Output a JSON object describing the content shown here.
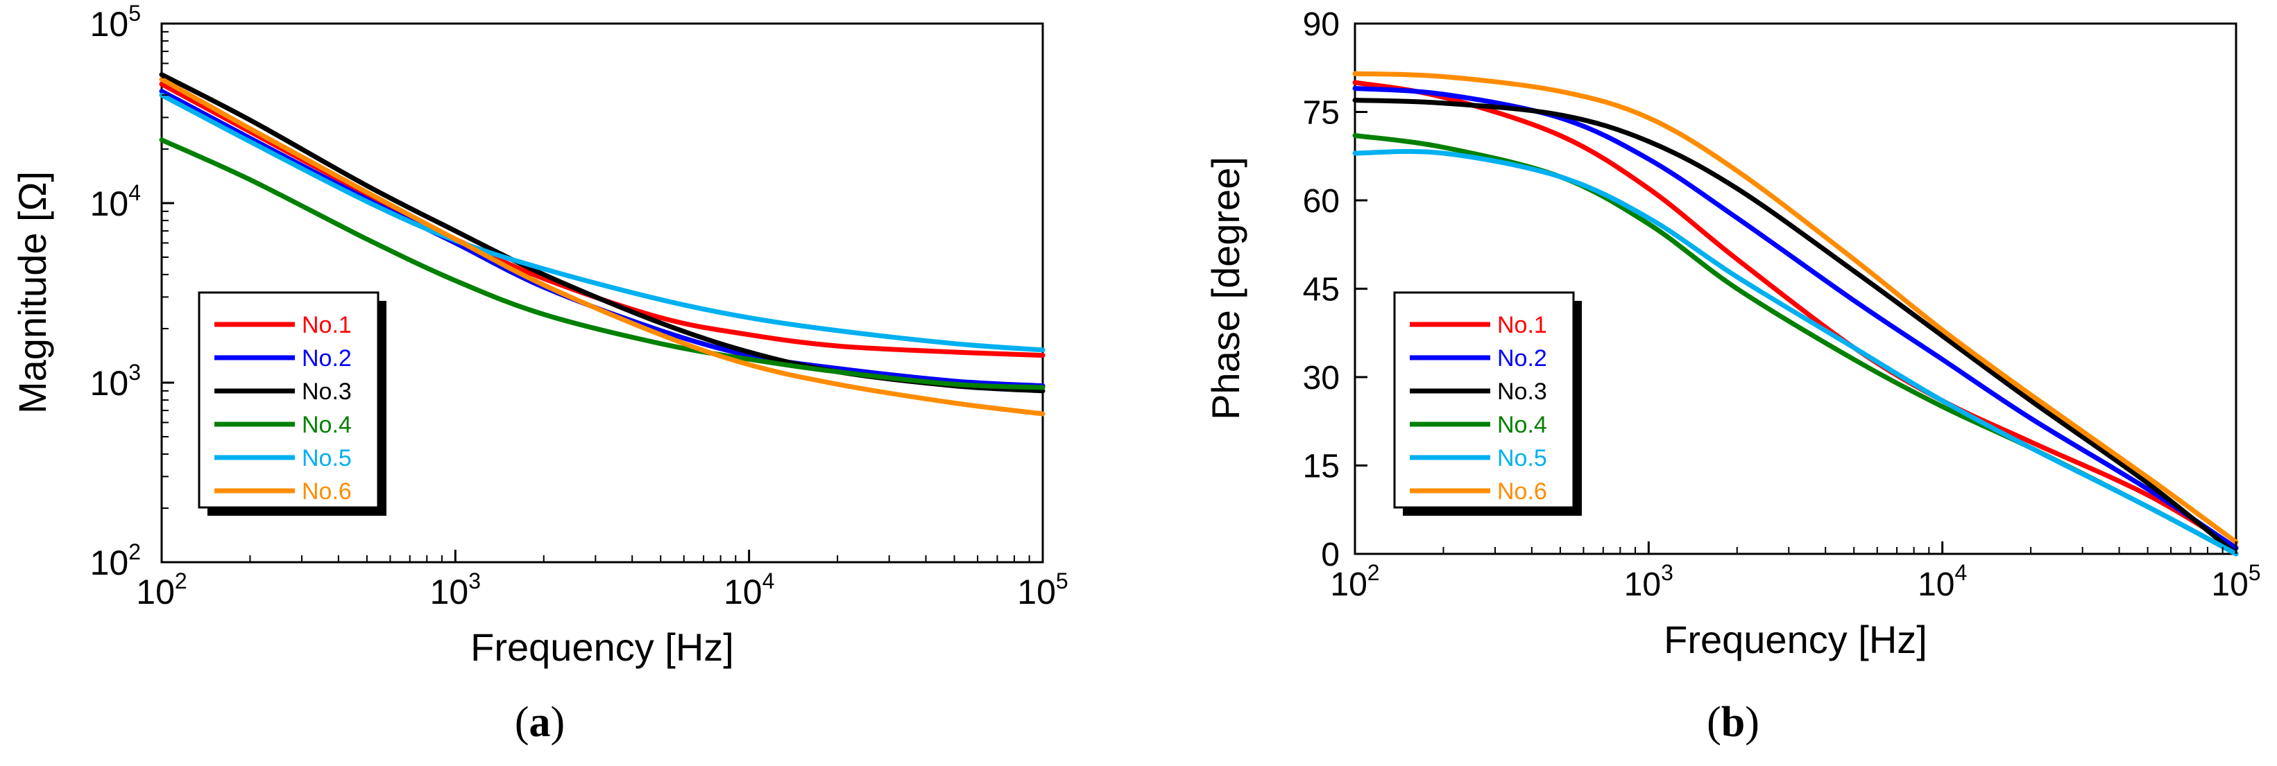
{
  "chart_data": [
    {
      "id": "a",
      "type": "line",
      "panel_label": "a",
      "xlabel": "Frequency [Hz]",
      "ylabel": "Magnitude [Ω]",
      "xscale": "log",
      "yscale": "log",
      "xlim": [
        100,
        100000
      ],
      "ylim": [
        100,
        100000
      ],
      "x_ticks": [
        100,
        1000,
        10000,
        100000
      ],
      "x_tick_labels": [
        {
          "base": "10",
          "exp": "2"
        },
        {
          "base": "10",
          "exp": "3"
        },
        {
          "base": "10",
          "exp": "4"
        },
        {
          "base": "10",
          "exp": "5"
        }
      ],
      "y_ticks": [
        100,
        1000,
        10000,
        100000
      ],
      "y_tick_labels": [
        {
          "base": "10",
          "exp": "2"
        },
        {
          "base": "10",
          "exp": "3"
        },
        {
          "base": "10",
          "exp": "4"
        },
        {
          "base": "10",
          "exp": "5"
        }
      ],
      "grid": false,
      "legend_position": "bottom-left",
      "x": [
        100,
        200,
        500,
        1000,
        2000,
        5000,
        10000,
        20000,
        50000,
        100000
      ],
      "series": [
        {
          "name": "No.1",
          "color": "#ff0000",
          "values": [
            46000,
            25000,
            11200,
            6300,
            3800,
            2300,
            1850,
            1600,
            1480,
            1420
          ]
        },
        {
          "name": "No.2",
          "color": "#0000ff",
          "values": [
            42000,
            23000,
            10500,
            6000,
            3400,
            1950,
            1420,
            1200,
            1020,
            960
          ]
        },
        {
          "name": "No.3",
          "color": "#000000",
          "values": [
            52000,
            29000,
            12500,
            7000,
            4000,
            2150,
            1480,
            1150,
            960,
            900
          ]
        },
        {
          "name": "No.4",
          "color": "#008000",
          "values": [
            22500,
            13500,
            6300,
            3700,
            2400,
            1650,
            1350,
            1150,
            980,
            940
          ]
        },
        {
          "name": "No.5",
          "color": "#00b0f0",
          "values": [
            40000,
            22000,
            10200,
            6200,
            4300,
            2900,
            2300,
            1950,
            1650,
            1520
          ]
        },
        {
          "name": "No.6",
          "color": "#ff8c00",
          "values": [
            49000,
            26000,
            11500,
            6300,
            3500,
            1850,
            1260,
            980,
            770,
            670
          ]
        }
      ]
    },
    {
      "id": "b",
      "type": "line",
      "panel_label": "b",
      "xlabel": "Frequency [Hz]",
      "ylabel": "Phase [degree]",
      "xscale": "log",
      "yscale": "linear",
      "xlim": [
        100,
        100000
      ],
      "ylim": [
        0,
        90
      ],
      "x_ticks": [
        100,
        1000,
        10000,
        100000
      ],
      "x_tick_labels": [
        {
          "base": "10",
          "exp": "2"
        },
        {
          "base": "10",
          "exp": "3"
        },
        {
          "base": "10",
          "exp": "4"
        },
        {
          "base": "10",
          "exp": "5"
        }
      ],
      "y_ticks": [
        0,
        15,
        30,
        45,
        60,
        75,
        90
      ],
      "y_tick_labels": [
        "0",
        "15",
        "30",
        "45",
        "60",
        "75",
        "90"
      ],
      "grid": false,
      "legend_position": "bottom-left",
      "x": [
        100,
        200,
        500,
        1000,
        2000,
        5000,
        10000,
        20000,
        50000,
        100000
      ],
      "series": [
        {
          "name": "No.1",
          "color": "#ff0000",
          "values": [
            80,
            77.5,
            71,
            62,
            50,
            35,
            26,
            19,
            10,
            1
          ]
        },
        {
          "name": "No.2",
          "color": "#0000ff",
          "values": [
            79,
            78,
            74,
            67,
            57,
            43,
            33,
            23,
            11,
            1
          ]
        },
        {
          "name": "No.3",
          "color": "#000000",
          "values": [
            77,
            76.5,
            74.5,
            70,
            62,
            48,
            37,
            26,
            12,
            0
          ]
        },
        {
          "name": "No.4",
          "color": "#008000",
          "values": [
            71,
            69,
            64,
            56,
            45,
            33,
            25,
            18,
            8,
            0
          ]
        },
        {
          "name": "No.5",
          "color": "#00b0f0",
          "values": [
            68,
            68,
            64,
            57,
            47,
            35,
            26,
            18,
            8,
            0
          ]
        },
        {
          "name": "No.6",
          "color": "#ff8c00",
          "values": [
            81.5,
            81,
            78.5,
            74,
            65,
            50,
            38,
            27,
            13,
            2
          ]
        }
      ]
    }
  ],
  "captions": [
    "(a)",
    "(b)"
  ]
}
